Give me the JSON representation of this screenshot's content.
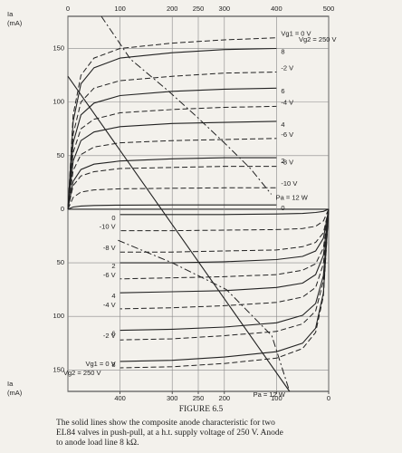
{
  "chart_data": {
    "type": "line",
    "color": "#222222",
    "grid": true,
    "y_label": "Ia",
    "y_unit": "(mA)",
    "xlim": [
      0,
      500
    ],
    "xticks": [
      0,
      100,
      200,
      250,
      300,
      400,
      500
    ],
    "x2lim": [
      500,
      0
    ],
    "x2ticks": [
      400,
      300,
      250,
      200,
      100,
      0
    ],
    "ylim": [
      -170,
      180
    ],
    "yticks": [
      150,
      100,
      50,
      0,
      {
        "value": -50,
        "label": "50"
      },
      {
        "value": -100,
        "label": "100"
      },
      {
        "value": -150,
        "label": "150"
      }
    ],
    "annotations": [
      "Vg2 = 250 V",
      "Vg2 = 250 V"
    ],
    "figure_label": "FIGURE 6.5",
    "caption": [
      "The solid lines show the composite anode characteristic for two",
      "EL84 valves in push-pull, at a h.t. supply voltage of 250 V. Anode",
      "to anode load line 8 kΩ."
    ],
    "series": [
      {
        "name": "8",
        "style": "solid",
        "xaxis": "x",
        "x": [
          0,
          10,
          25,
          50,
          100,
          200,
          300,
          400
        ],
        "values": [
          0,
          82,
          117,
          132,
          141,
          146,
          149,
          150
        ]
      },
      {
        "name": "6",
        "style": "solid",
        "xaxis": "x",
        "x": [
          0,
          10,
          25,
          50,
          100,
          200,
          300,
          400
        ],
        "values": [
          0,
          62,
          88,
          99,
          106,
          110,
          112,
          113
        ]
      },
      {
        "name": "4",
        "style": "solid",
        "xaxis": "x",
        "x": [
          0,
          10,
          25,
          50,
          100,
          200,
          300,
          400
        ],
        "values": [
          0,
          45,
          64,
          72,
          77,
          80,
          81,
          82
        ]
      },
      {
        "name": "2",
        "style": "solid",
        "xaxis": "x",
        "x": [
          0,
          10,
          25,
          50,
          100,
          200,
          300,
          400
        ],
        "values": [
          0,
          26,
          37,
          42,
          45,
          47,
          48,
          48
        ]
      },
      {
        "name": "0",
        "style": "solid",
        "xaxis": "x",
        "x": [
          0,
          10,
          25,
          50,
          100,
          200,
          300,
          400
        ],
        "values": [
          0,
          2,
          3,
          3.5,
          3.8,
          4,
          4,
          4
        ]
      },
      {
        "name": "Vg1 = 0 V",
        "style": "dashed",
        "xaxis": "x",
        "x": [
          0,
          10,
          25,
          50,
          100,
          200,
          300,
          400
        ],
        "values": [
          0,
          88,
          125,
          141,
          150,
          155,
          158,
          160
        ]
      },
      {
        "name": "-2 V",
        "style": "dashed",
        "xaxis": "x",
        "x": [
          0,
          10,
          25,
          50,
          100,
          200,
          300,
          400
        ],
        "values": [
          0,
          70,
          100,
          113,
          120,
          124,
          127,
          128
        ]
      },
      {
        "name": "-4 V",
        "style": "dashed",
        "xaxis": "x",
        "x": [
          0,
          10,
          25,
          50,
          100,
          200,
          300,
          400
        ],
        "values": [
          0,
          53,
          75,
          84,
          90,
          93,
          95,
          96
        ]
      },
      {
        "name": "-6 V",
        "style": "dashed",
        "xaxis": "x",
        "x": [
          0,
          10,
          25,
          50,
          100,
          200,
          300,
          400
        ],
        "values": [
          0,
          36,
          51,
          58,
          62,
          64,
          65,
          66
        ]
      },
      {
        "name": "-8 V",
        "style": "dashed",
        "xaxis": "x",
        "x": [
          0,
          10,
          25,
          50,
          100,
          200,
          300,
          400
        ],
        "values": [
          0,
          22,
          31,
          35,
          38,
          39,
          40,
          40
        ]
      },
      {
        "name": "-10 V",
        "style": "dashed",
        "xaxis": "x",
        "x": [
          0,
          10,
          25,
          50,
          100,
          200,
          300,
          400
        ],
        "values": [
          0,
          11,
          16,
          18,
          19,
          19.5,
          20,
          20
        ]
      },
      {
        "name": "Pa = 12 W",
        "style": "dashdot",
        "xaxis": "x",
        "x": [
          64,
          120,
          191,
          250,
          304,
          350,
          390
        ],
        "values": [
          180,
          140,
          111,
          85,
          60,
          38,
          14
        ]
      },
      {
        "style": "solid",
        "xaxis": "x",
        "x": [
          0,
          425
        ],
        "values": [
          124,
          -170
        ]
      },
      {
        "name": "0",
        "style": "solid",
        "xaxis": "x2",
        "x": [
          0,
          10,
          25,
          50,
          100,
          200,
          300,
          400
        ],
        "values": [
          0,
          -2,
          -3,
          -4,
          -4.5,
          -5,
          -5,
          -5
        ]
      },
      {
        "name": "2",
        "style": "solid",
        "xaxis": "x2",
        "x": [
          0,
          10,
          25,
          50,
          100,
          200,
          300,
          400
        ],
        "values": [
          0,
          -27,
          -39,
          -44,
          -47,
          -49,
          -50,
          -50
        ]
      },
      {
        "name": "4",
        "style": "solid",
        "xaxis": "x2",
        "x": [
          0,
          10,
          25,
          50,
          100,
          200,
          300,
          400
        ],
        "values": [
          0,
          -43,
          -61,
          -69,
          -73,
          -76,
          -77,
          -78
        ]
      },
      {
        "name": "6",
        "style": "solid",
        "xaxis": "x2",
        "x": [
          0,
          10,
          25,
          50,
          100,
          200,
          300,
          400
        ],
        "values": [
          0,
          -62,
          -88,
          -99,
          -106,
          -110,
          -112,
          -113
        ]
      },
      {
        "name": "8",
        "style": "solid",
        "xaxis": "x2",
        "x": [
          0,
          10,
          25,
          50,
          100,
          200,
          300,
          400
        ],
        "values": [
          0,
          -78,
          -111,
          -125,
          -133,
          -138,
          -141,
          -142
        ]
      },
      {
        "name": "-10 V",
        "style": "dashed",
        "xaxis": "x2",
        "x": [
          0,
          10,
          25,
          50,
          100,
          200,
          300,
          400
        ],
        "values": [
          0,
          -11,
          -16,
          -18,
          -19,
          -19.5,
          -20,
          -20
        ]
      },
      {
        "name": "-8 V",
        "style": "dashed",
        "xaxis": "x2",
        "x": [
          0,
          10,
          25,
          50,
          100,
          200,
          300,
          400
        ],
        "values": [
          0,
          -22,
          -31,
          -35,
          -38,
          -39,
          -40,
          -40
        ]
      },
      {
        "name": "-6 V",
        "style": "dashed",
        "xaxis": "x2",
        "x": [
          0,
          10,
          25,
          50,
          100,
          200,
          300,
          400
        ],
        "values": [
          0,
          -36,
          -51,
          -57,
          -61,
          -63,
          -64,
          -65
        ]
      },
      {
        "name": "-4 V",
        "style": "dashed",
        "xaxis": "x2",
        "x": [
          0,
          10,
          25,
          50,
          100,
          200,
          300,
          400
        ],
        "values": [
          0,
          -51,
          -73,
          -82,
          -87,
          -90,
          -92,
          -93
        ]
      },
      {
        "name": "-2 V",
        "style": "dashed",
        "xaxis": "x2",
        "x": [
          0,
          10,
          25,
          50,
          100,
          200,
          300,
          400
        ],
        "values": [
          0,
          -67,
          -95,
          -107,
          -114,
          -118,
          -121,
          -122
        ]
      },
      {
        "name": "Vg1 = 0 V",
        "style": "dashed",
        "xaxis": "x2",
        "x": [
          0,
          10,
          25,
          50,
          100,
          200,
          300,
          400
        ],
        "values": [
          0,
          -81,
          -115,
          -130,
          -139,
          -144,
          -147,
          -148
        ]
      },
      {
        "name": "Pa = 12 W",
        "style": "dashdot",
        "xaxis": "x2",
        "x": [
          404,
          300,
          196,
          109,
          75
        ],
        "values": [
          -29,
          -50,
          -75,
          -118,
          -170
        ]
      }
    ]
  }
}
